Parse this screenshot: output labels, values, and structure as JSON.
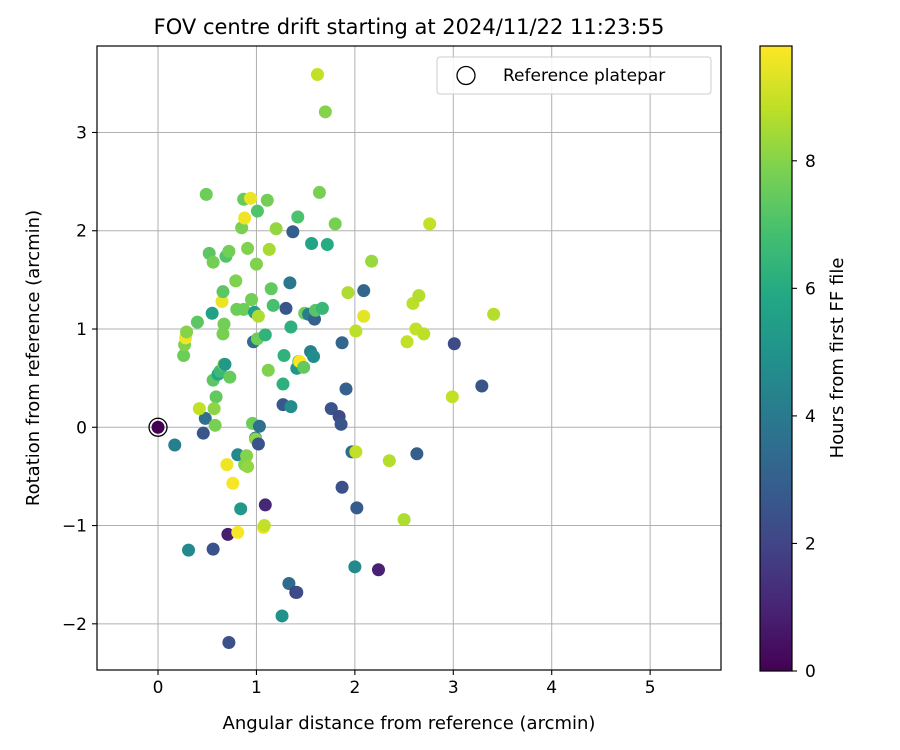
{
  "chart_data": {
    "type": "scatter",
    "title": "FOV centre drift starting at 2024/11/22 11:23:55",
    "xlabel": "Angular distance from reference (arcmin)",
    "ylabel": "Rotation from reference (arcmin)",
    "xlim": [
      -0.62,
      5.72
    ],
    "ylim": [
      -2.47,
      3.88
    ],
    "xticks": [
      0,
      1,
      2,
      3,
      4,
      5
    ],
    "xtick_labels": [
      "0",
      "1",
      "2",
      "3",
      "4",
      "5"
    ],
    "yticks": [
      -2,
      -1,
      0,
      1,
      2,
      3
    ],
    "ytick_labels": [
      "−2",
      "−1",
      "0",
      "1",
      "2",
      "3"
    ],
    "grid": true,
    "legend": {
      "position": "upper-right",
      "label": "Reference platepar"
    },
    "reference_point": {
      "x": 0,
      "y": 0
    },
    "colorbar": {
      "label": "Hours from first FF file",
      "colormap": "viridis",
      "range": [
        0,
        9.8
      ],
      "ticks": [
        0,
        2,
        4,
        6,
        8
      ],
      "tick_labels": [
        "0",
        "2",
        "4",
        "6",
        "8"
      ]
    },
    "series": [
      {
        "points": [
          {
            "x": 0.17,
            "y": -0.18,
            "c": 4.2
          },
          {
            "x": 0.31,
            "y": -1.25,
            "c": 4.6
          },
          {
            "x": 0.56,
            "y": -1.24,
            "c": 2.5
          },
          {
            "x": 0.71,
            "y": -1.09,
            "c": 0.8
          },
          {
            "x": 0.72,
            "y": -2.19,
            "c": 2.4
          },
          {
            "x": 0.46,
            "y": -0.06,
            "c": 2.6
          },
          {
            "x": 0.48,
            "y": 0.09,
            "c": 3.6
          },
          {
            "x": 0.26,
            "y": 0.73,
            "c": 7.6
          },
          {
            "x": 0.27,
            "y": 0.84,
            "c": 7.9
          },
          {
            "x": 0.28,
            "y": 0.91,
            "c": 9.6
          },
          {
            "x": 0.29,
            "y": 0.97,
            "c": 8.0
          },
          {
            "x": 0.4,
            "y": 1.07,
            "c": 7.3
          },
          {
            "x": 0.49,
            "y": 2.37,
            "c": 7.6
          },
          {
            "x": 0.52,
            "y": 1.77,
            "c": 7.3
          },
          {
            "x": 0.55,
            "y": 1.16,
            "c": 5.6
          },
          {
            "x": 0.56,
            "y": 1.68,
            "c": 7.7
          },
          {
            "x": 0.56,
            "y": 0.48,
            "c": 7.3
          },
          {
            "x": 0.58,
            "y": 0.02,
            "c": 7.8
          },
          {
            "x": 0.59,
            "y": 0.31,
            "c": 7.4
          },
          {
            "x": 0.61,
            "y": 0.54,
            "c": 5.8
          },
          {
            "x": 0.42,
            "y": 0.19,
            "c": 8.9
          },
          {
            "x": 0.57,
            "y": 0.19,
            "c": 8.1
          },
          {
            "x": 0.63,
            "y": 0.57,
            "c": 6.6
          },
          {
            "x": 0.65,
            "y": 1.28,
            "c": 9.5
          },
          {
            "x": 0.66,
            "y": 1.38,
            "c": 7.3
          },
          {
            "x": 0.66,
            "y": 0.95,
            "c": 7.8
          },
          {
            "x": 0.67,
            "y": 1.05,
            "c": 7.7
          },
          {
            "x": 0.67,
            "y": 0.64,
            "c": 8.2
          },
          {
            "x": 0.68,
            "y": 0.64,
            "c": 5.2
          },
          {
            "x": 0.69,
            "y": 1.74,
            "c": 7.1
          },
          {
            "x": 0.7,
            "y": -0.38,
            "c": 9.6
          },
          {
            "x": 0.72,
            "y": 1.79,
            "c": 7.7
          },
          {
            "x": 0.73,
            "y": 0.51,
            "c": 7.5
          },
          {
            "x": 0.76,
            "y": -0.57,
            "c": 9.7
          },
          {
            "x": 0.79,
            "y": 1.49,
            "c": 7.9
          },
          {
            "x": 0.8,
            "y": 1.2,
            "c": 7.6
          },
          {
            "x": 0.81,
            "y": -0.28,
            "c": 4.6
          },
          {
            "x": 0.81,
            "y": -1.07,
            "c": 9.7
          },
          {
            "x": 0.84,
            "y": -0.83,
            "c": 5.2
          },
          {
            "x": 0.85,
            "y": 2.03,
            "c": 7.8
          },
          {
            "x": 0.87,
            "y": 2.32,
            "c": 7.5
          },
          {
            "x": 0.87,
            "y": 1.2,
            "c": 7.6
          },
          {
            "x": 0.88,
            "y": -0.38,
            "c": 7.9
          },
          {
            "x": 0.88,
            "y": 2.13,
            "c": 9.6
          },
          {
            "x": 0.9,
            "y": -0.29,
            "c": 8.0
          },
          {
            "x": 0.91,
            "y": -0.4,
            "c": 8.2
          },
          {
            "x": 0.91,
            "y": 1.82,
            "c": 7.9
          },
          {
            "x": 0.94,
            "y": 2.33,
            "c": 9.5
          },
          {
            "x": 0.95,
            "y": 1.3,
            "c": 7.7
          },
          {
            "x": 0.96,
            "y": 0.04,
            "c": 7.6
          },
          {
            "x": 0.97,
            "y": 0.87,
            "c": 3.5
          },
          {
            "x": 0.98,
            "y": 1.17,
            "c": 5.6
          },
          {
            "x": 0.99,
            "y": -0.11,
            "c": 3.6
          },
          {
            "x": 0.99,
            "y": -0.12,
            "c": 8.1
          },
          {
            "x": 1.0,
            "y": 1.66,
            "c": 7.9
          },
          {
            "x": 1.01,
            "y": 2.2,
            "c": 7.1
          },
          {
            "x": 1.01,
            "y": 0.9,
            "c": 7.6
          },
          {
            "x": 1.02,
            "y": 1.13,
            "c": 8.6
          },
          {
            "x": 1.02,
            "y": -0.17,
            "c": 2.5
          },
          {
            "x": 1.03,
            "y": 0.01,
            "c": 3.6
          },
          {
            "x": 1.07,
            "y": -1.02,
            "c": 9.6
          },
          {
            "x": 1.08,
            "y": -1.0,
            "c": 8.9
          },
          {
            "x": 1.09,
            "y": -0.79,
            "c": 1.1
          },
          {
            "x": 1.09,
            "y": 0.94,
            "c": 6.3
          },
          {
            "x": 1.11,
            "y": 2.31,
            "c": 7.7
          },
          {
            "x": 1.12,
            "y": 0.58,
            "c": 7.9
          },
          {
            "x": 1.13,
            "y": 1.81,
            "c": 8.5
          },
          {
            "x": 1.15,
            "y": 1.41,
            "c": 7.4
          },
          {
            "x": 1.17,
            "y": 1.24,
            "c": 6.9
          },
          {
            "x": 1.2,
            "y": 2.02,
            "c": 8.2
          },
          {
            "x": 1.26,
            "y": -1.92,
            "c": 4.9
          },
          {
            "x": 1.27,
            "y": 0.23,
            "c": 2.7
          },
          {
            "x": 1.27,
            "y": 0.44,
            "c": 6.2
          },
          {
            "x": 1.28,
            "y": 0.73,
            "c": 6.3
          },
          {
            "x": 1.3,
            "y": 1.21,
            "c": 2.7
          },
          {
            "x": 1.33,
            "y": -1.59,
            "c": 3.4
          },
          {
            "x": 1.34,
            "y": 1.47,
            "c": 3.9
          },
          {
            "x": 1.35,
            "y": 0.21,
            "c": 4.7
          },
          {
            "x": 1.35,
            "y": 1.02,
            "c": 6.2
          },
          {
            "x": 1.37,
            "y": 1.99,
            "c": 2.9
          },
          {
            "x": 1.4,
            "y": -1.68,
            "c": 1.5
          },
          {
            "x": 1.41,
            "y": -1.68,
            "c": 2.2
          },
          {
            "x": 1.41,
            "y": 0.6,
            "c": 5.1
          },
          {
            "x": 1.42,
            "y": 2.14,
            "c": 7.0
          },
          {
            "x": 1.43,
            "y": 0.67,
            "c": 7.1
          },
          {
            "x": 1.44,
            "y": 0.67,
            "c": 9.8
          },
          {
            "x": 1.48,
            "y": 0.61,
            "c": 7.4
          },
          {
            "x": 1.49,
            "y": 1.16,
            "c": 7.6
          },
          {
            "x": 1.53,
            "y": 1.15,
            "c": 4.1
          },
          {
            "x": 1.55,
            "y": 0.77,
            "c": 4.3
          },
          {
            "x": 1.56,
            "y": 1.87,
            "c": 5.7
          },
          {
            "x": 1.58,
            "y": 0.72,
            "c": 4.8
          },
          {
            "x": 1.59,
            "y": 1.1,
            "c": 3.0
          },
          {
            "x": 1.6,
            "y": 1.19,
            "c": 7.2
          },
          {
            "x": 1.62,
            "y": 3.59,
            "c": 8.9
          },
          {
            "x": 1.64,
            "y": 2.39,
            "c": 7.8
          },
          {
            "x": 1.67,
            "y": 1.21,
            "c": 6.5
          },
          {
            "x": 1.7,
            "y": 3.21,
            "c": 8.0
          },
          {
            "x": 1.72,
            "y": 1.86,
            "c": 6.0
          },
          {
            "x": 1.76,
            "y": 0.19,
            "c": 2.5
          },
          {
            "x": 1.8,
            "y": 2.07,
            "c": 7.8
          },
          {
            "x": 1.84,
            "y": 0.11,
            "c": 2.2
          },
          {
            "x": 1.86,
            "y": 0.03,
            "c": 2.6
          },
          {
            "x": 1.87,
            "y": -0.61,
            "c": 2.4
          },
          {
            "x": 1.87,
            "y": 0.86,
            "c": 3.2
          },
          {
            "x": 1.91,
            "y": 0.39,
            "c": 3.0
          },
          {
            "x": 1.93,
            "y": 1.37,
            "c": 8.6
          },
          {
            "x": 1.97,
            "y": -0.25,
            "c": 3.5
          },
          {
            "x": 2.0,
            "y": -1.42,
            "c": 4.6
          },
          {
            "x": 2.01,
            "y": -0.25,
            "c": 8.9
          },
          {
            "x": 2.01,
            "y": 0.98,
            "c": 8.8
          },
          {
            "x": 2.02,
            "y": -0.82,
            "c": 2.8
          },
          {
            "x": 2.09,
            "y": 1.39,
            "c": 3.2
          },
          {
            "x": 2.09,
            "y": 1.13,
            "c": 9.4
          },
          {
            "x": 2.17,
            "y": 1.69,
            "c": 8.3
          },
          {
            "x": 2.24,
            "y": -1.45,
            "c": 0.9
          },
          {
            "x": 2.35,
            "y": -0.34,
            "c": 8.7
          },
          {
            "x": 2.5,
            "y": -0.94,
            "c": 8.6
          },
          {
            "x": 2.53,
            "y": 0.87,
            "c": 8.9
          },
          {
            "x": 2.59,
            "y": 1.26,
            "c": 8.8
          },
          {
            "x": 2.62,
            "y": 1.0,
            "c": 8.9
          },
          {
            "x": 2.63,
            "y": -0.27,
            "c": 2.9
          },
          {
            "x": 2.65,
            "y": 1.34,
            "c": 8.7
          },
          {
            "x": 2.7,
            "y": 0.95,
            "c": 8.8
          },
          {
            "x": 2.76,
            "y": 2.07,
            "c": 8.9
          },
          {
            "x": 2.99,
            "y": 0.31,
            "c": 8.9
          },
          {
            "x": 3.01,
            "y": 0.85,
            "c": 2.2
          },
          {
            "x": 3.29,
            "y": 0.42,
            "c": 2.6
          },
          {
            "x": 3.41,
            "y": 1.15,
            "c": 8.7
          }
        ]
      }
    ]
  }
}
